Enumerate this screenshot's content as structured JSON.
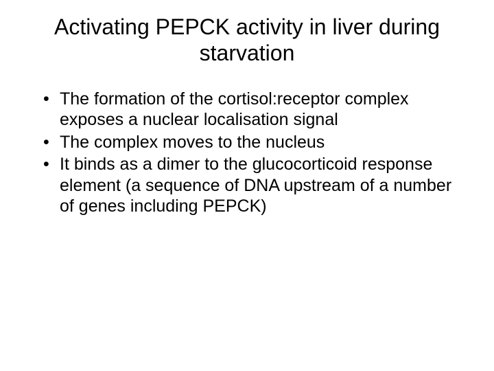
{
  "slide": {
    "title": "Activating PEPCK activity in liver during starvation",
    "bullets": [
      "The formation of the cortisol:receptor complex exposes a nuclear localisation signal",
      "The complex moves to the nucleus",
      "It binds as a dimer to the glucocorticoid response element (a sequence of DNA upstream of a number of genes including PEPCK)"
    ],
    "title_fontsize": 32,
    "body_fontsize": 25,
    "text_color": "#000000",
    "background_color": "#ffffff"
  }
}
